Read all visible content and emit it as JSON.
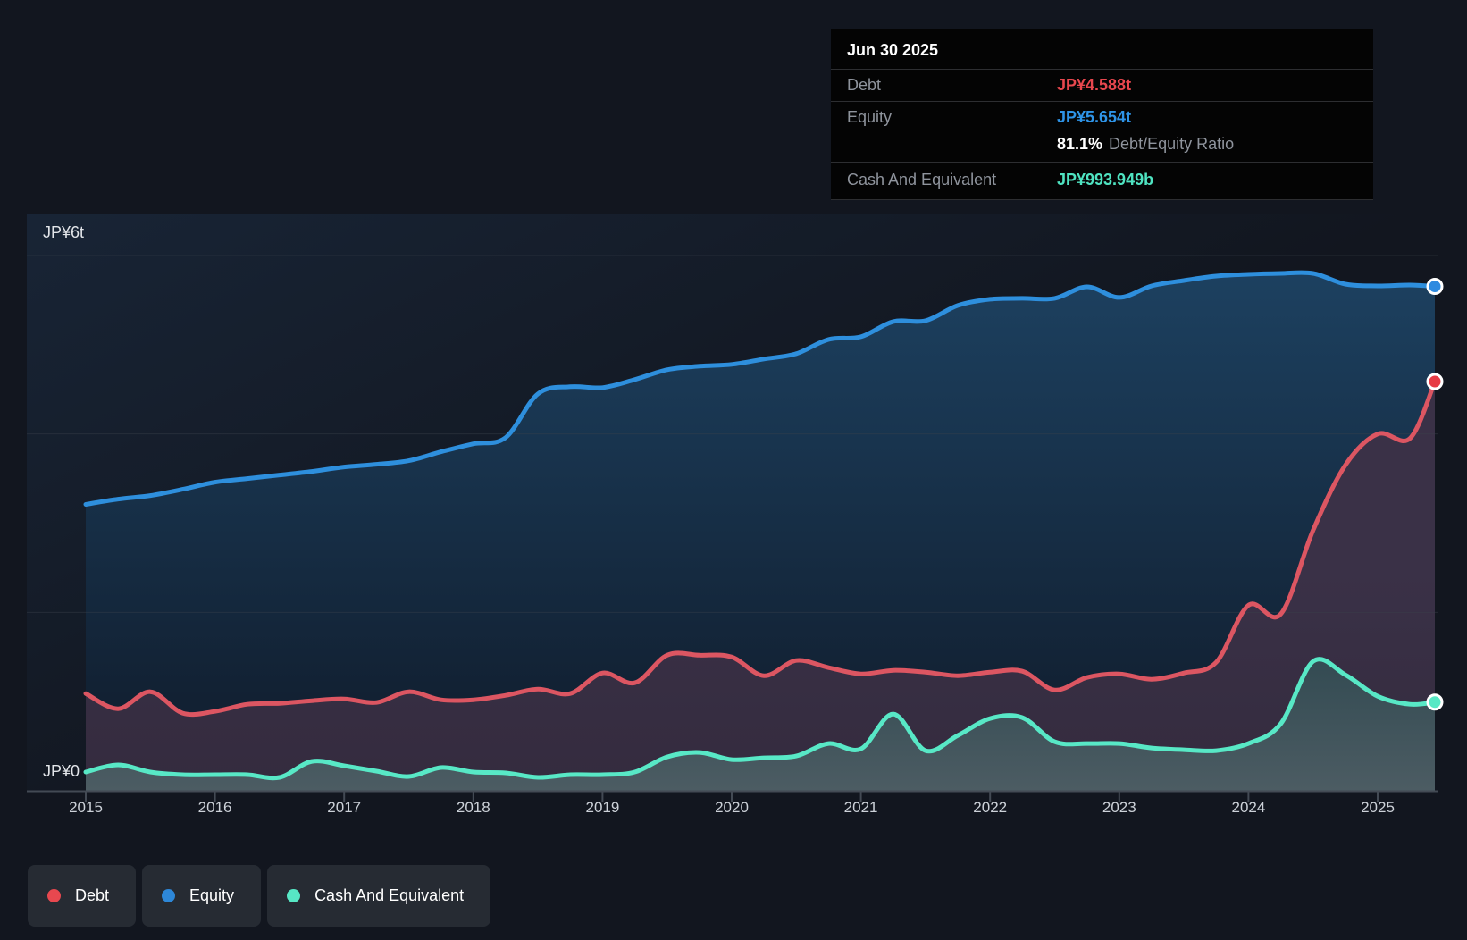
{
  "y_axis": {
    "top_label": "JP¥6t",
    "zero_label": "JP¥0"
  },
  "x_axis": {
    "years": [
      "2015",
      "2016",
      "2017",
      "2018",
      "2019",
      "2020",
      "2021",
      "2022",
      "2023",
      "2024",
      "2025"
    ]
  },
  "tooltip": {
    "date": "Jun 30 2025",
    "debt_label": "Debt",
    "debt_value": "JP¥4.588t",
    "debt_color": "#e8474e",
    "equity_label": "Equity",
    "equity_value": "JP¥5.654t",
    "equity_color": "#2e93e6",
    "ratio_value": "81.1%",
    "ratio_label": "Debt/Equity Ratio",
    "cash_label": "Cash And Equivalent",
    "cash_value": "JP¥993.949b",
    "cash_color": "#4fe3c1"
  },
  "legend": {
    "items": [
      {
        "label": "Debt",
        "color": "#e8484f"
      },
      {
        "label": "Equity",
        "color": "#2d87d8"
      },
      {
        "label": "Cash And Equivalent",
        "color": "#57e7c5"
      }
    ]
  },
  "chart_data": {
    "type": "area",
    "title": "Debt to Equity History",
    "unit": "JP¥ trillions",
    "ylim": [
      0,
      6
    ],
    "xlim": [
      2015,
      2025.5
    ],
    "grid": true,
    "gridline_values": [
      6,
      4,
      2
    ],
    "legend_position": "bottom-left",
    "x": [
      2015.0,
      2015.25,
      2015.5,
      2015.75,
      2016.0,
      2016.25,
      2016.5,
      2016.75,
      2017.0,
      2017.25,
      2017.5,
      2017.75,
      2018.0,
      2018.25,
      2018.5,
      2018.75,
      2019.0,
      2019.25,
      2019.5,
      2019.75,
      2020.0,
      2020.25,
      2020.5,
      2020.75,
      2021.0,
      2021.25,
      2021.5,
      2021.75,
      2022.0,
      2022.25,
      2022.5,
      2022.75,
      2023.0,
      2023.25,
      2023.5,
      2023.75,
      2024.0,
      2024.25,
      2024.5,
      2024.75,
      2025.0,
      2025.25,
      2025.5
    ],
    "series": [
      {
        "name": "Equity",
        "color": "#2e8fdd",
        "dot_color": "#2d8ae0",
        "fill_top": "#1d4262",
        "fill_bottom": "#122133",
        "final_label": "JP¥5.654t",
        "values": [
          3.21,
          3.27,
          3.31,
          3.38,
          3.46,
          3.5,
          3.54,
          3.58,
          3.63,
          3.66,
          3.7,
          3.8,
          3.89,
          3.96,
          4.45,
          4.53,
          4.52,
          4.61,
          4.72,
          4.76,
          4.78,
          4.84,
          4.9,
          5.06,
          5.09,
          5.26,
          5.27,
          5.44,
          5.51,
          5.52,
          5.52,
          5.65,
          5.53,
          5.66,
          5.72,
          5.77,
          5.79,
          5.8,
          5.8,
          5.68,
          5.66,
          5.67,
          5.654
        ]
      },
      {
        "name": "Debt",
        "color": "#dc5662",
        "dot_color": "#e73b45",
        "fill_top": "#3a3147",
        "fill_bottom": "#342b3e",
        "final_label": "JP¥4.588t",
        "values": [
          1.09,
          0.92,
          1.11,
          0.87,
          0.89,
          0.97,
          0.98,
          1.01,
          1.03,
          0.99,
          1.11,
          1.02,
          1.02,
          1.07,
          1.14,
          1.09,
          1.32,
          1.21,
          1.52,
          1.52,
          1.5,
          1.29,
          1.46,
          1.38,
          1.31,
          1.35,
          1.33,
          1.29,
          1.33,
          1.34,
          1.13,
          1.27,
          1.31,
          1.25,
          1.32,
          1.44,
          2.08,
          1.98,
          2.92,
          3.65,
          4.0,
          3.95,
          4.588
        ]
      },
      {
        "name": "Cash And Equivalent",
        "color": "#58e8c6",
        "dot_color": "#57e8c5",
        "fill_top": "#2b454d",
        "fill_bottom": "#4c5c63",
        "final_label": "JP¥993.949b",
        "values": [
          0.21,
          0.29,
          0.21,
          0.18,
          0.18,
          0.18,
          0.15,
          0.33,
          0.28,
          0.22,
          0.16,
          0.26,
          0.21,
          0.2,
          0.15,
          0.18,
          0.18,
          0.21,
          0.38,
          0.43,
          0.35,
          0.37,
          0.39,
          0.53,
          0.47,
          0.86,
          0.45,
          0.62,
          0.81,
          0.82,
          0.55,
          0.53,
          0.53,
          0.48,
          0.46,
          0.45,
          0.53,
          0.75,
          1.45,
          1.3,
          1.06,
          0.97,
          0.994
        ]
      }
    ]
  }
}
